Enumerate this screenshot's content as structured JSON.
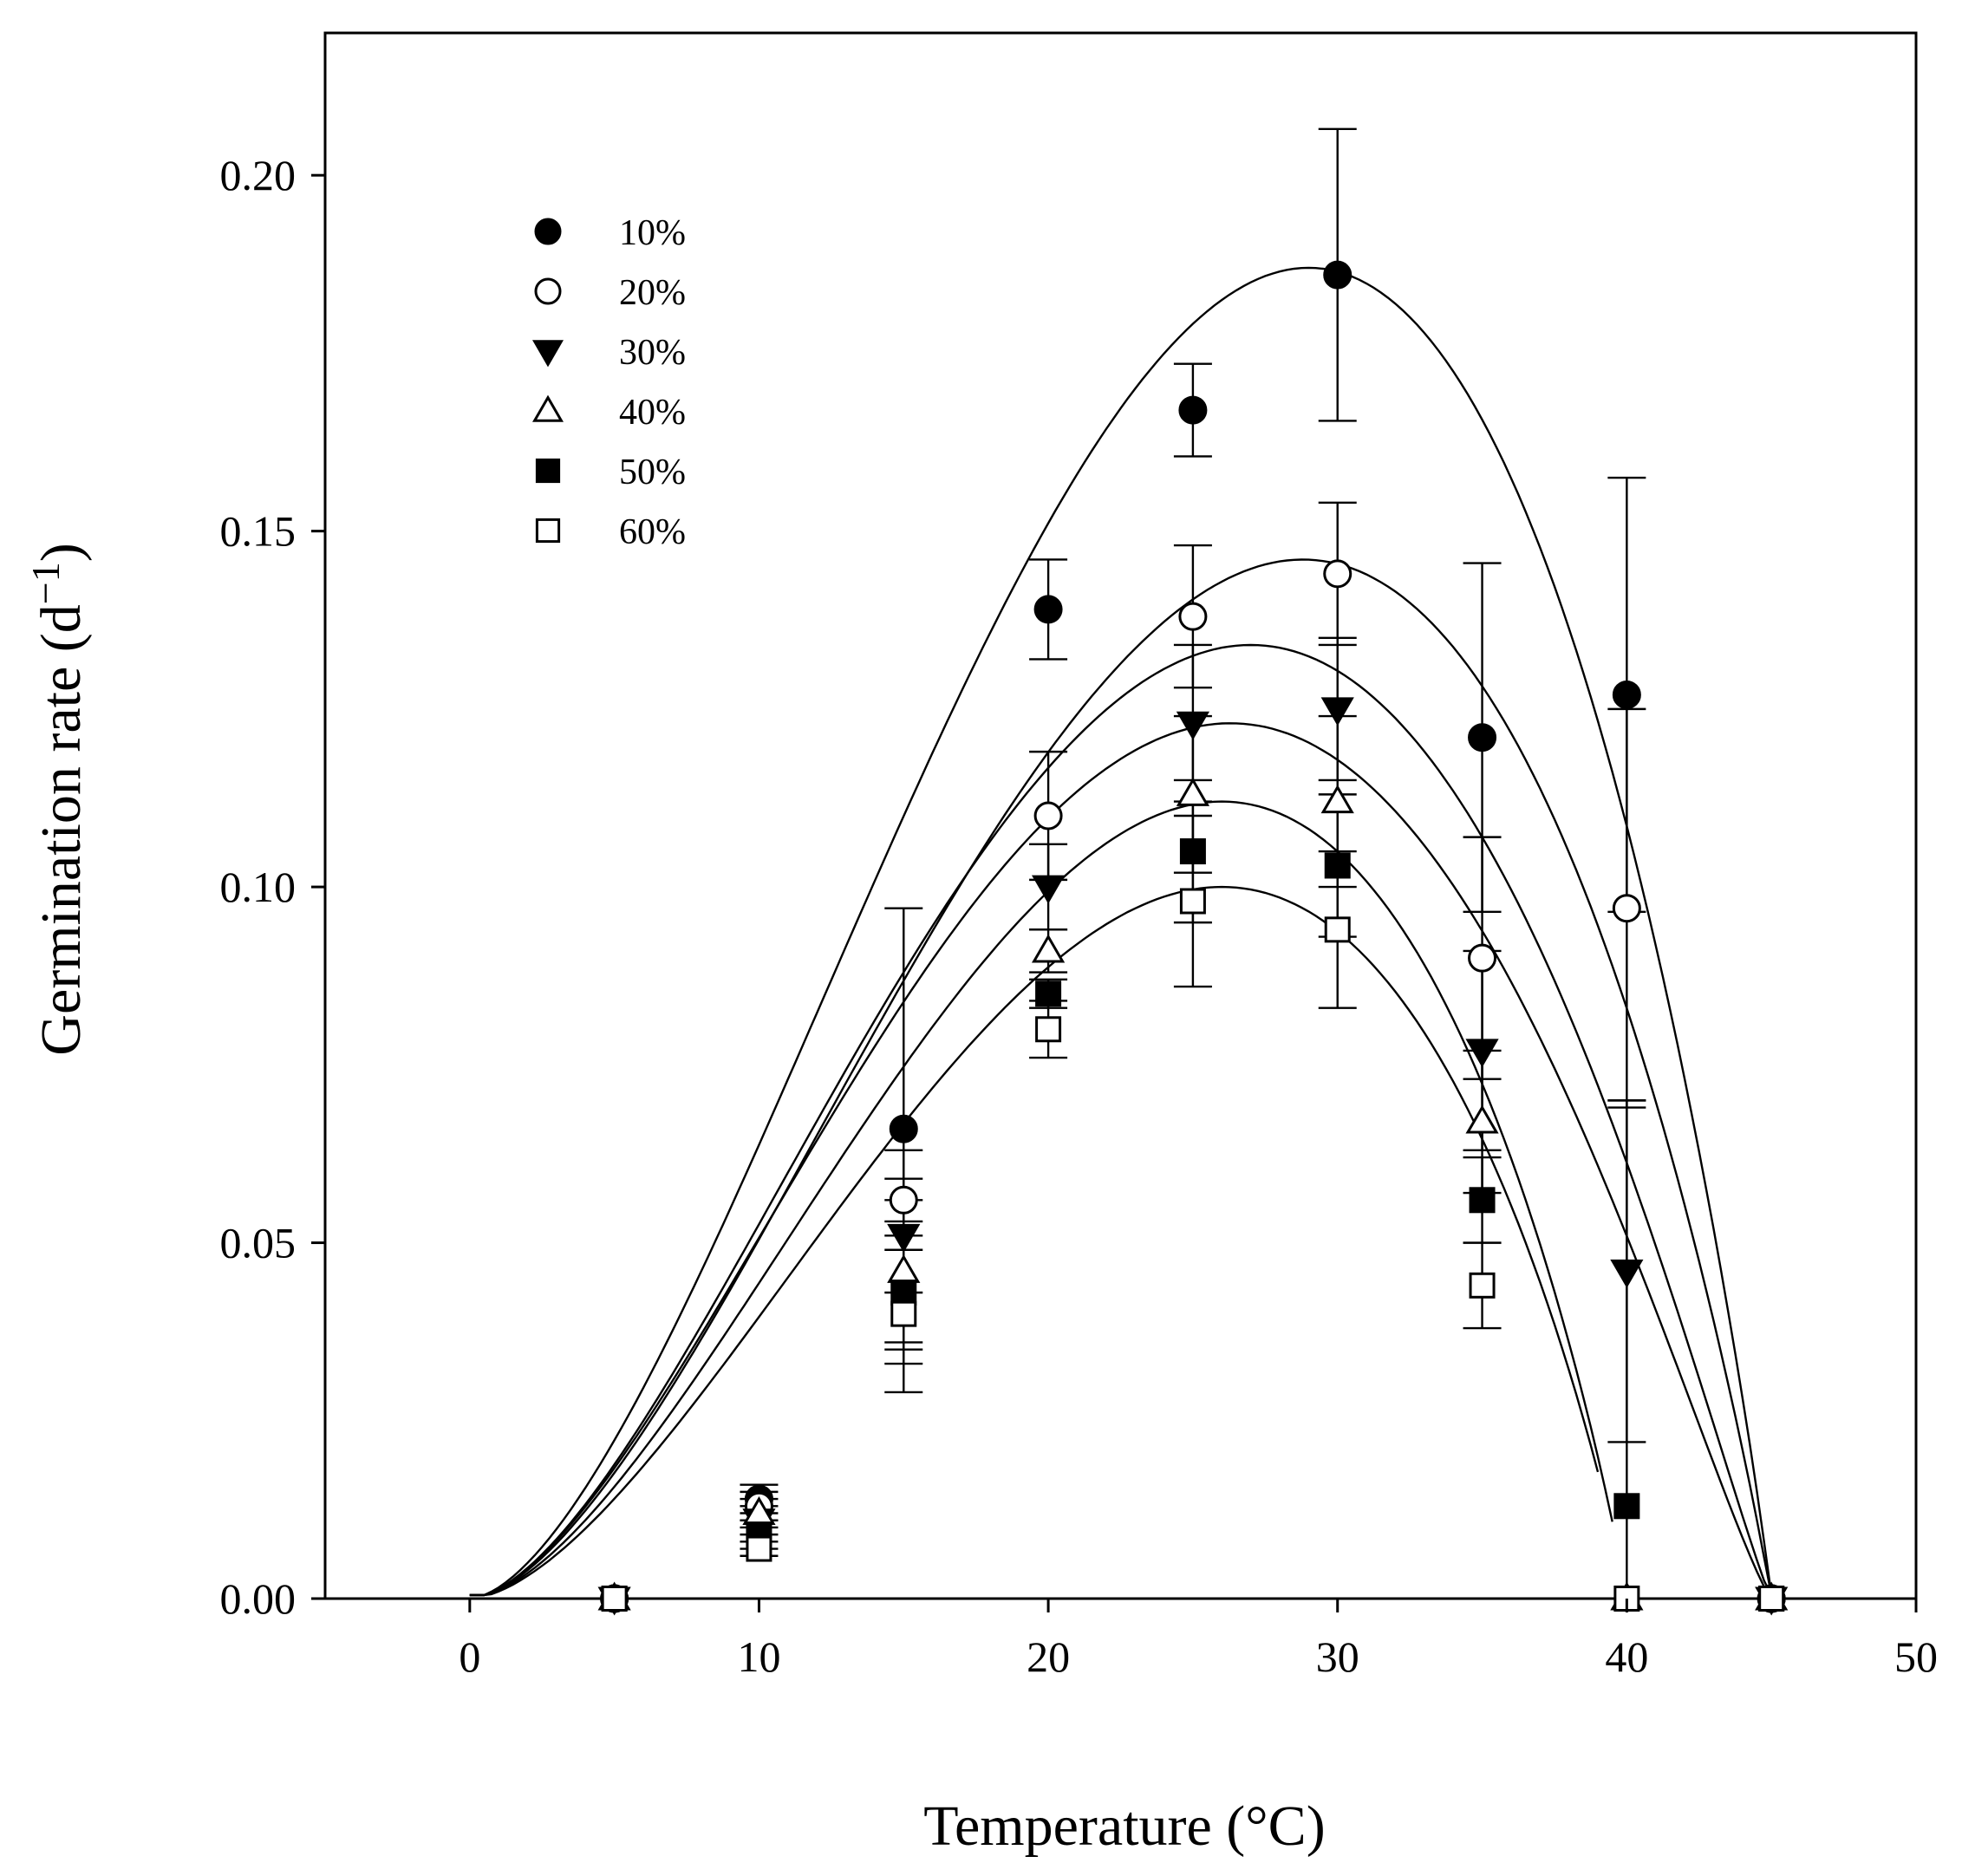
{
  "chart_data": {
    "type": "scatter",
    "title": "",
    "xlabel": "Temperature (°C)",
    "ylabel_main": "Germination rate (d",
    "ylabel_sup": "−1",
    "ylabel_close": ")",
    "xlim": [
      -5,
      50
    ],
    "ylim": [
      0,
      0.22
    ],
    "xticks": [
      0,
      10,
      20,
      30,
      40,
      50
    ],
    "xtick_labels": [
      "0",
      "10",
      "20",
      "30",
      "40",
      "50"
    ],
    "yticks": [
      0,
      0.05,
      0.1,
      0.15,
      0.2
    ],
    "ytick_labels": [
      "0.00",
      "0.05",
      "0.10",
      "0.15",
      "0.20"
    ],
    "grid": false,
    "legend_position": "top-left",
    "x": [
      5,
      10,
      15,
      20,
      25,
      30,
      35,
      40,
      45
    ],
    "series": [
      {
        "name": "10%",
        "marker": "circle",
        "fill": "#000000",
        "values": [
          0.0,
          0.014,
          0.066,
          0.139,
          0.167,
          0.186,
          0.121,
          0.127,
          0.0
        ],
        "errors": [
          0,
          0.002,
          0.031,
          0.007,
          0.0065,
          0.0205,
          0.0245,
          0.0305,
          0
        ],
        "curve": {
          "Tb": 0,
          "Tc": 45,
          "Topt": 29,
          "Rmax": 0.187,
          "x_end": 45
        }
      },
      {
        "name": "20%",
        "marker": "circle",
        "fill": "#ffffff",
        "values": [
          0.0,
          0.013,
          0.056,
          0.11,
          0.138,
          0.144,
          0.09,
          0.097,
          0.0
        ],
        "errors": [
          0,
          0.002,
          0.007,
          0.009,
          0.01,
          0.01,
          0.017,
          0.028,
          0
        ],
        "curve": {
          "Tb": 0,
          "Tc": 45,
          "Topt": 28.8,
          "Rmax": 0.146,
          "x_end": 45
        }
      },
      {
        "name": "30%",
        "marker": "triangle-down",
        "fill": "#000000",
        "values": [
          0.0,
          0.011,
          0.051,
          0.1,
          0.123,
          0.125,
          0.077,
          0.046,
          0.0
        ],
        "errors": [
          0,
          0.002,
          0.008,
          0.006,
          0.011,
          0.01,
          0.014,
          0.024,
          0
        ],
        "curve": {
          "Tb": 0,
          "Tc": 45,
          "Topt": 27,
          "Rmax": 0.134,
          "x_end": 45
        }
      },
      {
        "name": "40%",
        "marker": "triangle-up",
        "fill": "#ffffff",
        "values": [
          0.0,
          0.012,
          0.046,
          0.091,
          0.113,
          0.112,
          0.067,
          0.0,
          0.0
        ],
        "errors": [
          0,
          0.002,
          0.01,
          0.003,
          0.011,
          0.012,
          0.01,
          0,
          0
        ],
        "curve": {
          "Tb": 0,
          "Tc": 45,
          "Topt": 26.3,
          "Rmax": 0.123,
          "x_end": 45
        }
      },
      {
        "name": "50%",
        "marker": "square",
        "fill": "#000000",
        "values": [
          0.0,
          0.009,
          0.043,
          0.085,
          0.105,
          0.103,
          0.056,
          0.013,
          0.0
        ],
        "errors": [
          0,
          0.002,
          0.01,
          0.002,
          0.01,
          0.01,
          0.006,
          0.057,
          0
        ],
        "curve": {
          "Tb": 0,
          "Tc": 40,
          "Topt": 26,
          "Rmax": 0.112,
          "x_end": 39.5
        }
      },
      {
        "name": "60%",
        "marker": "square",
        "fill": "#ffffff",
        "values": [
          0.0,
          0.007,
          0.04,
          0.08,
          0.098,
          0.094,
          0.044,
          0.0,
          0.0
        ],
        "errors": [
          0,
          0.001,
          0.011,
          0.004,
          0.012,
          0.011,
          0.006,
          0,
          0
        ],
        "curve": {
          "Tb": 0,
          "Tc": 40,
          "Topt": 26,
          "Rmax": 0.1,
          "x_end": 39
        }
      }
    ]
  }
}
